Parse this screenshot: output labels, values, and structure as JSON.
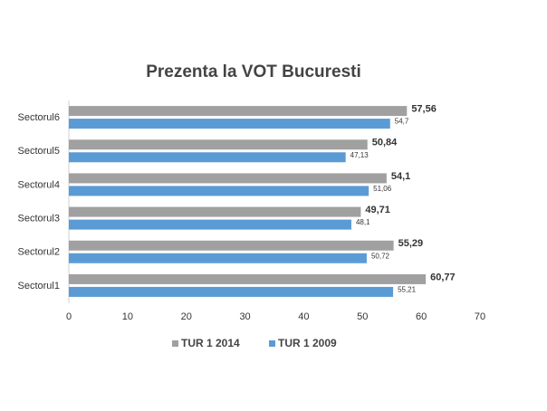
{
  "chart_data": {
    "type": "hbar",
    "title": "Prezenta la VOT Bucuresti",
    "categories": [
      "Sectorul1",
      "Sectorul2",
      "Sectorul3",
      "Sectorul4",
      "Sectorul5",
      "Sectorul6"
    ],
    "series": [
      {
        "name": "TUR 1 2014",
        "color": "#a0a0a0",
        "values": [
          60.77,
          55.29,
          49.71,
          54.1,
          50.84,
          57.56
        ],
        "value_labels": [
          "60,77",
          "55,29",
          "49,71",
          "54,1",
          "50,84",
          "57,56"
        ]
      },
      {
        "name": "TUR 1 2009",
        "color": "#5b9bd5",
        "values": [
          55.21,
          50.72,
          48.1,
          51.06,
          47.13,
          54.7
        ],
        "value_labels": [
          "55,21",
          "50,72",
          "48,1",
          "51,06",
          "47,13",
          "54,7"
        ]
      }
    ],
    "xlim": [
      0,
      70
    ],
    "xticks": [
      0,
      10,
      20,
      30,
      40,
      50,
      60,
      70
    ],
    "legend": "bottom"
  }
}
